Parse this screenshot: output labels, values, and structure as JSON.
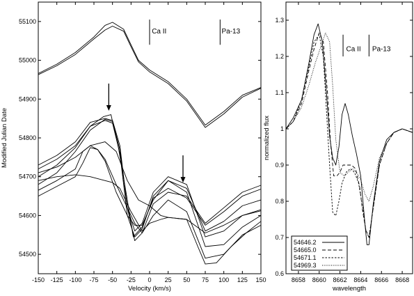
{
  "chart_data": [
    {
      "type": "line",
      "xlabel": "Velocity (km/s)",
      "ylabel": "Modified Julian Date",
      "xlim": [
        -150,
        150
      ],
      "ylim": [
        54450,
        55150
      ],
      "x_ticks": [
        -150,
        -125,
        -100,
        -75,
        -50,
        -25,
        0,
        25,
        50,
        75,
        100,
        125,
        150
      ],
      "y_ticks": [
        54500,
        54600,
        54700,
        54800,
        54900,
        55000,
        55100
      ],
      "grid": false,
      "annotations": [
        {
          "text": "Ca II",
          "x": 3,
          "y": 55075
        },
        {
          "text": "Pa-13",
          "x": 97,
          "y": 55075
        }
      ],
      "marker_lines": [
        {
          "x": 0,
          "y_range": [
            55040,
            55105
          ]
        },
        {
          "x": 95,
          "y_range": [
            55040,
            55105
          ]
        }
      ],
      "arrows": [
        {
          "x": -55,
          "y_from": 54940,
          "y_to": 54870
        },
        {
          "x": 45,
          "y_from": 54755,
          "y_to": 54685
        }
      ],
      "series": [
        {
          "x": [
            -150,
            -125,
            -100,
            -75,
            -60,
            -50,
            -35,
            -25,
            -15,
            0,
            25,
            50,
            75,
            100,
            125,
            150
          ],
          "values": [
            54966,
            54990,
            55020,
            55060,
            55090,
            55098,
            55080,
            55040,
            55000,
            54975,
            54945,
            54900,
            54833,
            54868,
            54910,
            54930
          ]
        },
        {
          "x": [
            -150,
            -125,
            -100,
            -75,
            -60,
            -50,
            -35,
            -25,
            -15,
            0,
            25,
            50,
            75,
            100,
            125,
            150
          ],
          "values": [
            54963,
            54986,
            55015,
            55055,
            55078,
            55088,
            55075,
            55035,
            54996,
            54970,
            54940,
            54895,
            54827,
            54862,
            54905,
            54928
          ]
        },
        {
          "x": [
            -150,
            -125,
            -100,
            -80,
            -62,
            -52,
            -42,
            -30,
            -22,
            -10,
            5,
            25,
            50,
            75,
            100,
            125,
            150
          ],
          "values": [
            54720,
            54745,
            54780,
            54830,
            54855,
            54860,
            54775,
            54640,
            54545,
            54570,
            54645,
            54670,
            54645,
            54575,
            54610,
            54650,
            54668
          ]
        },
        {
          "x": [
            -150,
            -125,
            -100,
            -80,
            -60,
            -50,
            -40,
            -30,
            -20,
            -10,
            5,
            25,
            50,
            75,
            100,
            125,
            150
          ],
          "values": [
            54730,
            54755,
            54790,
            54840,
            54850,
            54845,
            54780,
            54620,
            54535,
            54555,
            54630,
            54660,
            54650,
            54580,
            54620,
            54660,
            54678
          ]
        },
        {
          "x": [
            -150,
            -125,
            -100,
            -80,
            -60,
            -50,
            -40,
            -30,
            -20,
            -10,
            5,
            25,
            50,
            75,
            100,
            125,
            150
          ],
          "values": [
            54700,
            54730,
            54775,
            54830,
            54845,
            54838,
            54760,
            54600,
            54545,
            54565,
            54650,
            54690,
            54670,
            54560,
            54585,
            54625,
            54640
          ]
        },
        {
          "x": [
            -150,
            -125,
            -100,
            -80,
            -60,
            -50,
            -40,
            -30,
            -20,
            -10,
            5,
            25,
            50,
            75,
            100,
            125,
            150
          ],
          "values": [
            54680,
            54710,
            54765,
            54820,
            54848,
            54842,
            54770,
            54620,
            54560,
            54580,
            54660,
            54700,
            54680,
            54545,
            54560,
            54600,
            54612
          ]
        },
        {
          "x": [
            -150,
            -125,
            -100,
            -90,
            -80,
            -70,
            -60,
            -45,
            -30,
            -20,
            -10,
            5,
            25,
            50,
            75,
            100,
            125,
            150
          ],
          "values": [
            54665,
            54690,
            54720,
            54765,
            54780,
            54770,
            54740,
            54660,
            54600,
            54575,
            54575,
            54640,
            54690,
            54660,
            54520,
            54525,
            54570,
            54600
          ]
        },
        {
          "x": [
            -150,
            -125,
            -100,
            -90,
            -80,
            -70,
            -60,
            -45,
            -30,
            -20,
            -10,
            5,
            25,
            50,
            75,
            100,
            125,
            150
          ],
          "values": [
            54650,
            54675,
            54700,
            54735,
            54775,
            54770,
            54745,
            54680,
            54620,
            54580,
            54555,
            54600,
            54640,
            54610,
            54490,
            54500,
            54550,
            54575
          ]
        },
        {
          "x": [
            -150,
            -125,
            -100,
            -80,
            -60,
            -45,
            -30,
            -15,
            0,
            15,
            25,
            50,
            65,
            75,
            90,
            110,
            130,
            150
          ],
          "values": [
            54710,
            54725,
            54750,
            54780,
            54790,
            54765,
            54690,
            54640,
            54625,
            54600,
            54595,
            54590,
            54520,
            54475,
            54478,
            54520,
            54555,
            54585
          ]
        },
        {
          "x": [
            -150,
            -125,
            -100,
            -80,
            -60,
            -50,
            -40,
            -25,
            -10,
            0,
            15,
            25,
            50,
            75,
            100,
            125,
            150
          ],
          "values": [
            54690,
            54700,
            54705,
            54700,
            54690,
            54685,
            54670,
            54610,
            54560,
            54580,
            54590,
            54595,
            54590,
            54555,
            54575,
            54600,
            54615
          ]
        }
      ]
    },
    {
      "type": "line",
      "xlabel": "wavelength",
      "ylabel": "normalized flux",
      "xlim": [
        8656.8,
        8669
      ],
      "ylim": [
        0.6,
        1.35
      ],
      "x_ticks": [
        8658,
        8660,
        8662,
        8664,
        8666,
        8668
      ],
      "y_ticks": [
        0.6,
        0.7,
        0.8,
        0.9,
        1,
        1.1,
        1.2,
        1.3
      ],
      "grid": false,
      "legend_position": "bottom-left",
      "annotations": [
        {
          "text": "Ca II",
          "x": 8662.6,
          "y": 1.22
        },
        {
          "text": "Pa-13",
          "x": 8665.1,
          "y": 1.22
        }
      ],
      "marker_lines": [
        {
          "x": 8662.3,
          "y_range": [
            1.2,
            1.26
          ]
        },
        {
          "x": 8664.8,
          "y_range": [
            1.2,
            1.26
          ]
        }
      ],
      "series": [
        {
          "name": "54646.2",
          "style": "solid",
          "x": [
            8656.8,
            8657.5,
            8658.3,
            8659.0,
            8659.5,
            8659.9,
            8660.3,
            8660.7,
            8661.0,
            8661.3,
            8661.6,
            8661.9,
            8662.2,
            8662.5,
            8662.8,
            8663.2,
            8663.6,
            8664.0,
            8664.4,
            8664.6,
            8664.8,
            8665.2,
            8665.8,
            8666.5,
            8667.2,
            8668.0,
            8669.0
          ],
          "values": [
            1.0,
            1.03,
            1.08,
            1.18,
            1.26,
            1.29,
            1.24,
            1.1,
            0.98,
            0.92,
            0.9,
            0.95,
            1.04,
            1.07,
            1.04,
            0.98,
            0.93,
            0.87,
            0.74,
            0.68,
            0.68,
            0.79,
            0.91,
            0.97,
            0.99,
            1.0,
            0.99
          ]
        },
        {
          "name": "54665.0",
          "style": "dashed",
          "x": [
            8656.8,
            8657.5,
            8658.3,
            8659.0,
            8659.5,
            8660.0,
            8660.4,
            8660.8,
            8661.1,
            8661.4,
            8661.7,
            8662.0,
            8662.3,
            8662.7,
            8663.1,
            8663.5,
            8663.9,
            8664.2,
            8664.5,
            8664.8,
            8665.2,
            8665.8,
            8666.5,
            8667.2,
            8668.0,
            8669.0
          ],
          "values": [
            1.0,
            1.02,
            1.07,
            1.16,
            1.22,
            1.265,
            1.24,
            1.1,
            0.96,
            0.87,
            0.87,
            0.88,
            0.9,
            0.9,
            0.9,
            0.89,
            0.84,
            0.77,
            0.72,
            0.7,
            0.78,
            0.9,
            0.96,
            0.99,
            1.0,
            0.99
          ]
        },
        {
          "name": "54671.1",
          "style": "short-dashed",
          "x": [
            8656.8,
            8657.5,
            8658.3,
            8659.0,
            8659.5,
            8660.0,
            8660.4,
            8660.7,
            8661.0,
            8661.3,
            8661.6,
            8661.9,
            8662.2,
            8662.6,
            8663.0,
            8663.4,
            8663.8,
            8664.2,
            8664.5,
            8664.8,
            8665.2,
            8665.8,
            8666.5,
            8667.2,
            8668.0,
            8669.0
          ],
          "values": [
            1.0,
            1.02,
            1.08,
            1.17,
            1.24,
            1.26,
            1.2,
            1.05,
            0.9,
            0.77,
            0.76,
            0.8,
            0.85,
            0.88,
            0.89,
            0.88,
            0.85,
            0.78,
            0.72,
            0.7,
            0.78,
            0.9,
            0.96,
            0.99,
            1.0,
            0.99
          ]
        },
        {
          "name": "54969.3",
          "style": "dotted",
          "x": [
            8656.8,
            8657.5,
            8658.3,
            8659.0,
            8659.6,
            8660.2,
            8660.6,
            8661.0,
            8661.3,
            8661.6,
            8662.0,
            8662.4,
            8662.8,
            8663.2,
            8663.6,
            8664.0,
            8664.4,
            8664.8,
            8665.2,
            8665.8,
            8666.5,
            8667.2,
            8668.0,
            8669.0
          ],
          "values": [
            1.0,
            1.02,
            1.06,
            1.12,
            1.18,
            1.23,
            1.265,
            1.24,
            1.12,
            0.97,
            0.88,
            0.87,
            0.88,
            0.89,
            0.88,
            0.86,
            0.82,
            0.8,
            0.84,
            0.92,
            0.96,
            0.99,
            1.0,
            0.99
          ]
        }
      ]
    }
  ]
}
